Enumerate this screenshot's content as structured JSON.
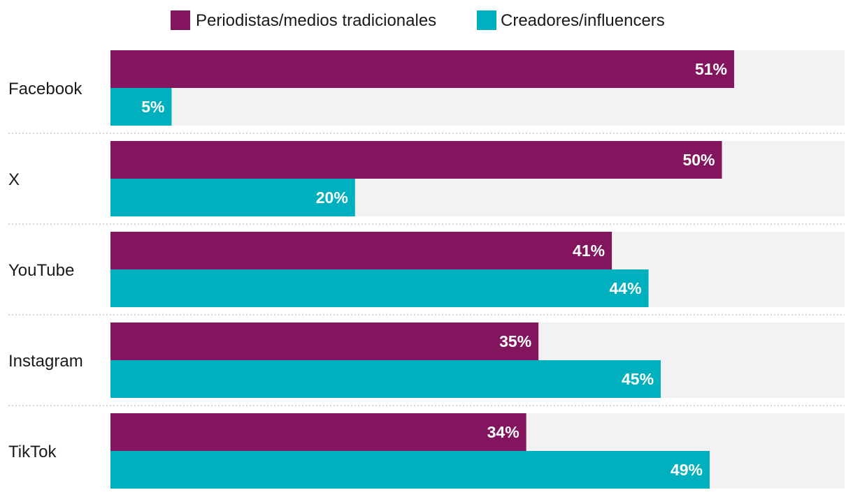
{
  "chart_data": {
    "type": "bar",
    "orientation": "horizontal",
    "title": "",
    "xlabel": "",
    "ylabel": "",
    "xlim": [
      0,
      60
    ],
    "grid": false,
    "legend": "top-center",
    "categories": [
      "Facebook",
      "X",
      "YouTube",
      "Instagram",
      "TikTok"
    ],
    "series": [
      {
        "name": "Periodistas/medios tradicionales",
        "color": "#82155e",
        "values": [
          51,
          50,
          41,
          35,
          34
        ],
        "labels": [
          "51%",
          "50%",
          "41%",
          "35%",
          "34%"
        ]
      },
      {
        "name": "Creadores/influencers",
        "color": "#00b0bf",
        "values": [
          5,
          20,
          44,
          45,
          49
        ],
        "labels": [
          "5%",
          "20%",
          "44%",
          "45%",
          "49%"
        ]
      }
    ],
    "track_color": "#f2f2f2",
    "separator_color": "#c8c8c8"
  }
}
